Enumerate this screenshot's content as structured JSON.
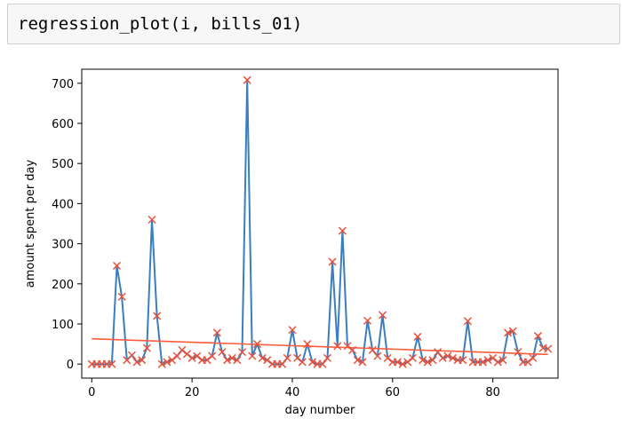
{
  "notebook": {
    "code_cell": {
      "source": "regression_plot(i, bills_01)"
    }
  },
  "colors": {
    "line": "#3a7ebf",
    "markers": "#e8513b",
    "regression": "#ff5a3c",
    "cell_background": "#f7f7f7"
  },
  "chart_data": {
    "type": "line",
    "title": "",
    "xlabel": "day number",
    "ylabel": "amount spent per day",
    "xlim": [
      -2,
      93
    ],
    "ylim": [
      -35,
      735
    ],
    "xticks": [
      0,
      20,
      40,
      60,
      80
    ],
    "yticks": [
      0,
      100,
      200,
      300,
      400,
      500,
      600,
      700
    ],
    "grid": false,
    "series": [
      {
        "values": [
          [
            0,
            0
          ],
          [
            1,
            0
          ],
          [
            2,
            0
          ],
          [
            3,
            0
          ],
          [
            4,
            0
          ],
          [
            5,
            245
          ],
          [
            6,
            168
          ],
          [
            7,
            10
          ],
          [
            8,
            22
          ],
          [
            9,
            5
          ],
          [
            10,
            10
          ],
          [
            11,
            40
          ],
          [
            12,
            360
          ],
          [
            13,
            120
          ],
          [
            14,
            0
          ],
          [
            15,
            5
          ],
          [
            16,
            10
          ],
          [
            17,
            20
          ],
          [
            18,
            35
          ],
          [
            19,
            25
          ],
          [
            20,
            15
          ],
          [
            21,
            20
          ],
          [
            22,
            10
          ],
          [
            23,
            10
          ],
          [
            24,
            20
          ],
          [
            25,
            78
          ],
          [
            26,
            30
          ],
          [
            27,
            10
          ],
          [
            28,
            15
          ],
          [
            29,
            10
          ],
          [
            30,
            30
          ],
          [
            31,
            708
          ],
          [
            32,
            20
          ],
          [
            33,
            50
          ],
          [
            34,
            15
          ],
          [
            35,
            10
          ],
          [
            36,
            0
          ],
          [
            37,
            0
          ],
          [
            38,
            0
          ],
          [
            39,
            15
          ],
          [
            40,
            85
          ],
          [
            41,
            15
          ],
          [
            42,
            5
          ],
          [
            43,
            50
          ],
          [
            44,
            5
          ],
          [
            45,
            0
          ],
          [
            46,
            0
          ],
          [
            47,
            15
          ],
          [
            48,
            255
          ],
          [
            49,
            45
          ],
          [
            50,
            332
          ],
          [
            51,
            45
          ],
          [
            52,
            35
          ],
          [
            53,
            10
          ],
          [
            54,
            5
          ],
          [
            55,
            108
          ],
          [
            56,
            35
          ],
          [
            57,
            20
          ],
          [
            58,
            122
          ],
          [
            59,
            15
          ],
          [
            60,
            5
          ],
          [
            61,
            5
          ],
          [
            62,
            0
          ],
          [
            63,
            5
          ],
          [
            64,
            15
          ],
          [
            65,
            68
          ],
          [
            66,
            10
          ],
          [
            67,
            5
          ],
          [
            68,
            10
          ],
          [
            69,
            30
          ],
          [
            70,
            15
          ],
          [
            71,
            20
          ],
          [
            72,
            15
          ],
          [
            73,
            10
          ],
          [
            74,
            10
          ],
          [
            75,
            107
          ],
          [
            76,
            5
          ],
          [
            77,
            5
          ],
          [
            78,
            5
          ],
          [
            79,
            10
          ],
          [
            80,
            15
          ],
          [
            81,
            5
          ],
          [
            82,
            10
          ],
          [
            83,
            78
          ],
          [
            84,
            82
          ],
          [
            85,
            30
          ],
          [
            86,
            5
          ],
          [
            87,
            5
          ],
          [
            88,
            15
          ],
          [
            89,
            70
          ],
          [
            90,
            40
          ],
          [
            91,
            38
          ]
        ]
      },
      {
        "type": "regression-line",
        "values": [
          [
            0,
            63
          ],
          [
            91,
            24
          ]
        ]
      }
    ]
  }
}
